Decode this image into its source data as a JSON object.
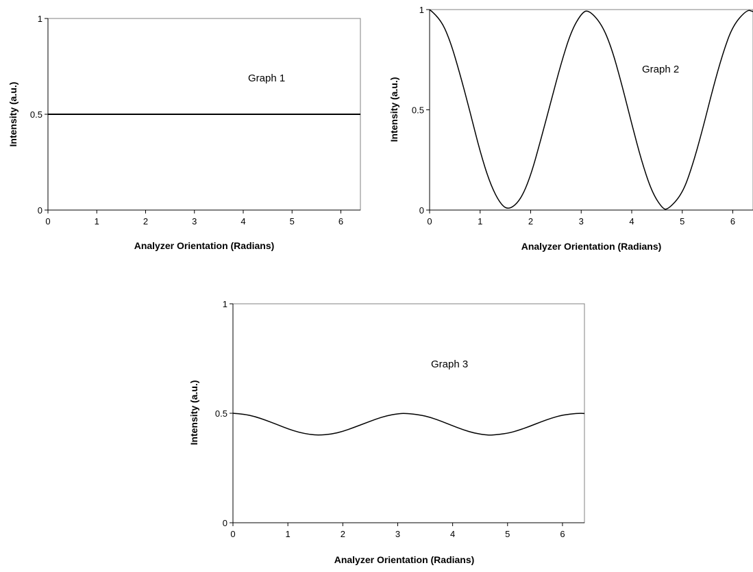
{
  "chart_data": [
    {
      "type": "line",
      "annotation": "Graph 1",
      "xlabel": "Analyzer Orientation (Radians)",
      "ylabel": "Intensity (a.u.)",
      "xlim": [
        0,
        6.4
      ],
      "ylim": [
        0,
        1
      ],
      "xticks": [
        "0",
        "1",
        "2",
        "3",
        "4",
        "5",
        "6"
      ],
      "yticks": [
        "0",
        "0.5",
        "1"
      ],
      "grid": false,
      "series": [
        {
          "x": [
            0,
            1,
            2,
            3,
            4,
            5,
            6,
            6.4
          ],
          "y": [
            0.5,
            0.5,
            0.5,
            0.5,
            0.5,
            0.5,
            0.5,
            0.5
          ]
        }
      ]
    },
    {
      "type": "line",
      "annotation": "Graph 2",
      "xlabel": "Analyzer Orientation (Radians)",
      "ylabel": "Intensity (a.u.)",
      "xlim": [
        0,
        6.4
      ],
      "ylim": [
        0,
        1
      ],
      "xticks": [
        "0",
        "1",
        "2",
        "3",
        "4",
        "5",
        "6"
      ],
      "yticks": [
        "0",
        "0.5",
        "1"
      ],
      "grid": false,
      "series": [
        {
          "x": [
            0,
            0.2,
            0.4,
            0.6,
            0.8,
            1.0,
            1.2,
            1.4,
            1.57,
            1.8,
            2.0,
            2.2,
            2.4,
            2.6,
            2.8,
            3.0,
            3.14,
            3.4,
            3.6,
            3.8,
            4.0,
            4.2,
            4.4,
            4.6,
            4.71,
            5.0,
            5.2,
            5.4,
            5.6,
            5.8,
            6.0,
            6.28,
            6.4
          ],
          "y": [
            1.0,
            0.96,
            0.85,
            0.68,
            0.49,
            0.29,
            0.13,
            0.03,
            0.0,
            0.05,
            0.17,
            0.35,
            0.54,
            0.73,
            0.89,
            0.98,
            1.0,
            0.93,
            0.81,
            0.63,
            0.43,
            0.24,
            0.09,
            0.01,
            0.0,
            0.08,
            0.22,
            0.4,
            0.6,
            0.78,
            0.92,
            1.0,
            0.99
          ]
        }
      ]
    },
    {
      "type": "line",
      "annotation": "Graph 3",
      "xlabel": "Analyzer Orientation (Radians)",
      "ylabel": "Intensity (a.u.)",
      "xlim": [
        0,
        6.4
      ],
      "ylim": [
        0,
        1
      ],
      "xticks": [
        "0",
        "1",
        "2",
        "3",
        "4",
        "5",
        "6"
      ],
      "yticks": [
        "0",
        "0.5",
        "1"
      ],
      "grid": false,
      "series": [
        {
          "x": [
            0,
            0.2,
            0.4,
            0.6,
            0.8,
            1.0,
            1.2,
            1.4,
            1.57,
            1.8,
            2.0,
            2.2,
            2.4,
            2.6,
            2.8,
            3.0,
            3.14,
            3.4,
            3.6,
            3.8,
            4.0,
            4.2,
            4.4,
            4.6,
            4.71,
            5.0,
            5.2,
            5.4,
            5.6,
            5.8,
            6.0,
            6.28,
            6.4
          ],
          "y": [
            0.5,
            0.496,
            0.485,
            0.468,
            0.449,
            0.429,
            0.413,
            0.403,
            0.4,
            0.405,
            0.417,
            0.435,
            0.454,
            0.473,
            0.489,
            0.498,
            0.5,
            0.493,
            0.481,
            0.463,
            0.443,
            0.424,
            0.409,
            0.401,
            0.4,
            0.408,
            0.422,
            0.44,
            0.46,
            0.478,
            0.492,
            0.5,
            0.499
          ]
        }
      ]
    }
  ]
}
